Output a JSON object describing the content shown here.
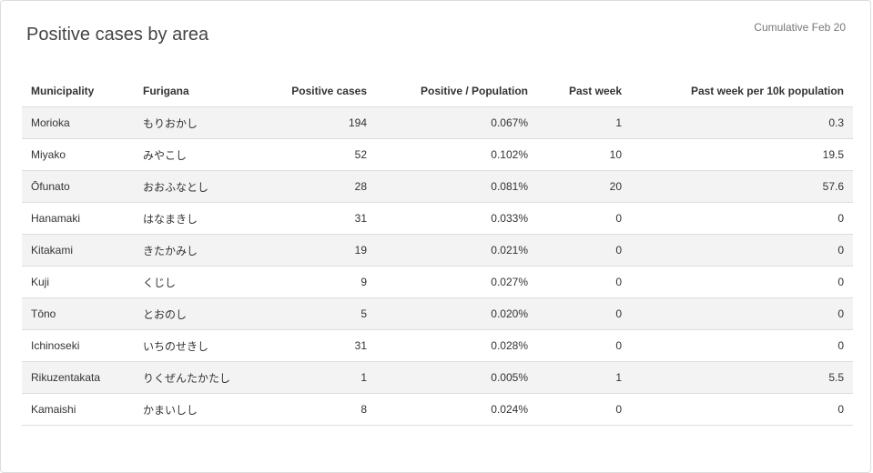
{
  "card": {
    "title": "Positive cases by area",
    "note": "Cumulative Feb 20"
  },
  "table": {
    "headers": [
      "Municipality",
      "Furigana",
      "Positive cases",
      "Positive / Population",
      "Past week",
      "Past week per 10k population"
    ],
    "rows": [
      [
        "Morioka",
        "もりおかし",
        "194",
        "0.067%",
        "1",
        "0.3"
      ],
      [
        "Miyako",
        "みやこし",
        "52",
        "0.102%",
        "10",
        "19.5"
      ],
      [
        "Ōfunato",
        "おおふなとし",
        "28",
        "0.081%",
        "20",
        "57.6"
      ],
      [
        "Hanamaki",
        "はなまきし",
        "31",
        "0.033%",
        "0",
        "0"
      ],
      [
        "Kitakami",
        "きたかみし",
        "19",
        "0.021%",
        "0",
        "0"
      ],
      [
        "Kuji",
        "くじし",
        "9",
        "0.027%",
        "0",
        "0"
      ],
      [
        "Tōno",
        "とおのし",
        "5",
        "0.020%",
        "0",
        "0"
      ],
      [
        "Ichinoseki",
        "いちのせきし",
        "31",
        "0.028%",
        "0",
        "0"
      ],
      [
        "Rikuzentakata",
        "りくぜんたかたし",
        "1",
        "0.005%",
        "1",
        "5.5"
      ],
      [
        "Kamaishi",
        "かまいしし",
        "8",
        "0.024%",
        "0",
        "0"
      ]
    ]
  }
}
